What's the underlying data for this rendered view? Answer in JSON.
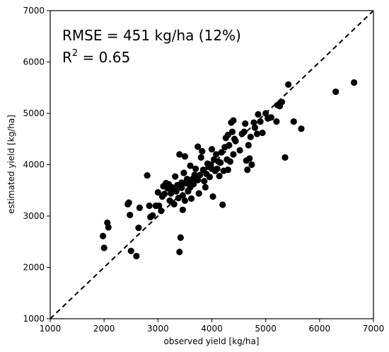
{
  "chart_data": {
    "type": "scatter",
    "title": "",
    "xlabel": "observed yield [kg/ha]",
    "ylabel": "estimated yield [kg/ha]",
    "xlim": [
      1000,
      7000
    ],
    "ylim": [
      1000,
      7000
    ],
    "xticks": [
      1000,
      2000,
      3000,
      4000,
      5000,
      6000,
      7000
    ],
    "yticks": [
      1000,
      2000,
      3000,
      4000,
      5000,
      6000,
      7000
    ],
    "grid": false,
    "reference_line": {
      "style": "dashed",
      "from": [
        1000,
        1000
      ],
      "to": [
        7000,
        7000
      ]
    },
    "annotation": {
      "rmse": "RMSE = 451 kg/ha (12%)",
      "r2_prefix": "R",
      "r2_exponent": "2",
      "r2_value": " = 0.65"
    },
    "point_color": "#000000",
    "points": [
      [
        1980,
        2610
      ],
      [
        2000,
        2380
      ],
      [
        2060,
        2870
      ],
      [
        2080,
        2780
      ],
      [
        2440,
        3230
      ],
      [
        2460,
        3260
      ],
      [
        2480,
        3020
      ],
      [
        2500,
        2320
      ],
      [
        2600,
        2220
      ],
      [
        2640,
        2770
      ],
      [
        2660,
        3160
      ],
      [
        2800,
        3790
      ],
      [
        2840,
        3200
      ],
      [
        2860,
        2980
      ],
      [
        2900,
        3010
      ],
      [
        2960,
        3200
      ],
      [
        3000,
        3460
      ],
      [
        3020,
        3200
      ],
      [
        3060,
        3100
      ],
      [
        3080,
        3380
      ],
      [
        3100,
        3580
      ],
      [
        3120,
        3430
      ],
      [
        3150,
        3640
      ],
      [
        3180,
        3540
      ],
      [
        3200,
        3620
      ],
      [
        3220,
        3300
      ],
      [
        3240,
        3440
      ],
      [
        3260,
        3560
      ],
      [
        3280,
        3500
      ],
      [
        3300,
        3230
      ],
      [
        3320,
        3770
      ],
      [
        3340,
        3480
      ],
      [
        3360,
        3600
      ],
      [
        3380,
        3350
      ],
      [
        3400,
        4200
      ],
      [
        3400,
        2300
      ],
      [
        3420,
        2580
      ],
      [
        3440,
        3550
      ],
      [
        3440,
        3650
      ],
      [
        3460,
        3400
      ],
      [
        3460,
        3120
      ],
      [
        3480,
        3840
      ],
      [
        3500,
        4160
      ],
      [
        3500,
        3300
      ],
      [
        3520,
        3640
      ],
      [
        3540,
        3720
      ],
      [
        3560,
        3480
      ],
      [
        3580,
        3650
      ],
      [
        3600,
        3980
      ],
      [
        3600,
        3560
      ],
      [
        3620,
        3340
      ],
      [
        3640,
        3720
      ],
      [
        3660,
        3620
      ],
      [
        3680,
        3800
      ],
      [
        3700,
        3920
      ],
      [
        3720,
        3760
      ],
      [
        3740,
        4350
      ],
      [
        3740,
        3700
      ],
      [
        3760,
        3440
      ],
      [
        3780,
        3800
      ],
      [
        3800,
        4140
      ],
      [
        3820,
        4260
      ],
      [
        3840,
        3900
      ],
      [
        3860,
        3680
      ],
      [
        3880,
        3560
      ],
      [
        3900,
        3820
      ],
      [
        3920,
        4020
      ],
      [
        3940,
        3960
      ],
      [
        3960,
        3760
      ],
      [
        3980,
        4000
      ],
      [
        4000,
        3920
      ],
      [
        4000,
        4300
      ],
      [
        4020,
        3380
      ],
      [
        4040,
        4100
      ],
      [
        4060,
        3880
      ],
      [
        4080,
        4200
      ],
      [
        4100,
        3920
      ],
      [
        4120,
        4060
      ],
      [
        4140,
        3780
      ],
      [
        4160,
        4040
      ],
      [
        4180,
        4240
      ],
      [
        4200,
        3220
      ],
      [
        4220,
        3880
      ],
      [
        4240,
        4340
      ],
      [
        4260,
        4520
      ],
      [
        4280,
        4100
      ],
      [
        4300,
        4580
      ],
      [
        4300,
        3900
      ],
      [
        4320,
        4380
      ],
      [
        4340,
        4060
      ],
      [
        4360,
        4820
      ],
      [
        4380,
        4640
      ],
      [
        4400,
        4860
      ],
      [
        4400,
        4200
      ],
      [
        4420,
        4500
      ],
      [
        4440,
        4460
      ],
      [
        4520,
        4280
      ],
      [
        4560,
        4600
      ],
      [
        4600,
        4640
      ],
      [
        4620,
        4800
      ],
      [
        4640,
        4080
      ],
      [
        4660,
        3900
      ],
      [
        4680,
        4380
      ],
      [
        4700,
        4120
      ],
      [
        4720,
        4540
      ],
      [
        4740,
        4000
      ],
      [
        4780,
        4820
      ],
      [
        4800,
        4720
      ],
      [
        4840,
        4600
      ],
      [
        4860,
        4980
      ],
      [
        4900,
        4840
      ],
      [
        4940,
        4620
      ],
      [
        5000,
        5000
      ],
      [
        5040,
        4900
      ],
      [
        5100,
        4920
      ],
      [
        5200,
        4840
      ],
      [
        5220,
        5160
      ],
      [
        5260,
        5140
      ],
      [
        5300,
        5220
      ],
      [
        5360,
        4140
      ],
      [
        5420,
        5560
      ],
      [
        5520,
        4840
      ],
      [
        5660,
        4700
      ],
      [
        6300,
        5420
      ],
      [
        6640,
        5600
      ]
    ]
  }
}
